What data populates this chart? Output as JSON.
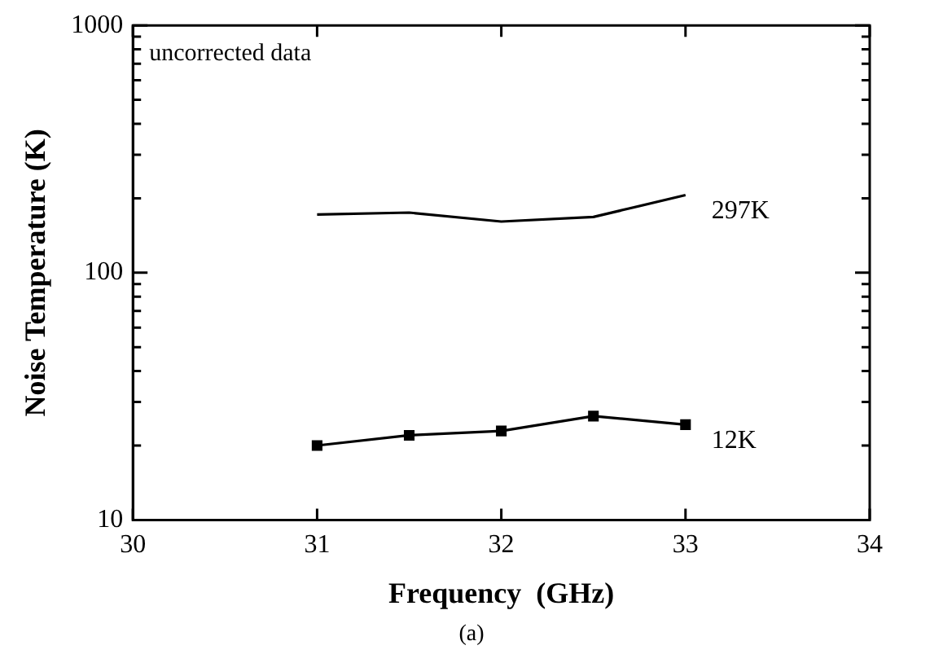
{
  "chart_data": {
    "type": "line",
    "xlabel": "Frequency  (GHz)",
    "ylabel": "Noise Temperature (K)",
    "x": [
      31,
      31.5,
      32,
      32.5,
      33
    ],
    "series": [
      {
        "name": "297K",
        "color": "#000000",
        "values": [
          172,
          175,
          161,
          168,
          206
        ],
        "marker": "none"
      },
      {
        "name": "12K",
        "color": "#000000",
        "values": [
          20,
          22,
          22.9,
          26.3,
          24.3
        ],
        "marker": "square"
      }
    ],
    "xlim": [
      30,
      34
    ],
    "xticks": [
      30,
      31,
      32,
      33,
      34
    ],
    "ylim": [
      10,
      1000
    ],
    "log": true,
    "yticks": [
      10,
      {
        "value": 20,
        "label": null
      },
      {
        "value": 30,
        "label": null
      },
      {
        "value": 40,
        "label": null
      },
      {
        "value": 50,
        "label": null
      },
      {
        "value": 60,
        "label": null
      },
      {
        "value": 70,
        "label": null
      },
      {
        "value": 80,
        "label": null
      },
      {
        "value": 90,
        "label": null
      },
      100,
      {
        "value": 200,
        "label": null
      },
      {
        "value": 300,
        "label": null
      },
      {
        "value": 400,
        "label": null
      },
      {
        "value": 500,
        "label": null
      },
      {
        "value": 600,
        "label": null
      },
      {
        "value": 700,
        "label": null
      },
      {
        "value": 800,
        "label": null
      },
      {
        "value": 900,
        "label": null
      },
      1000
    ],
    "grid": false,
    "legend": false,
    "line_style": "solid",
    "annotations": [
      "uncorrected data",
      "(a)"
    ]
  }
}
